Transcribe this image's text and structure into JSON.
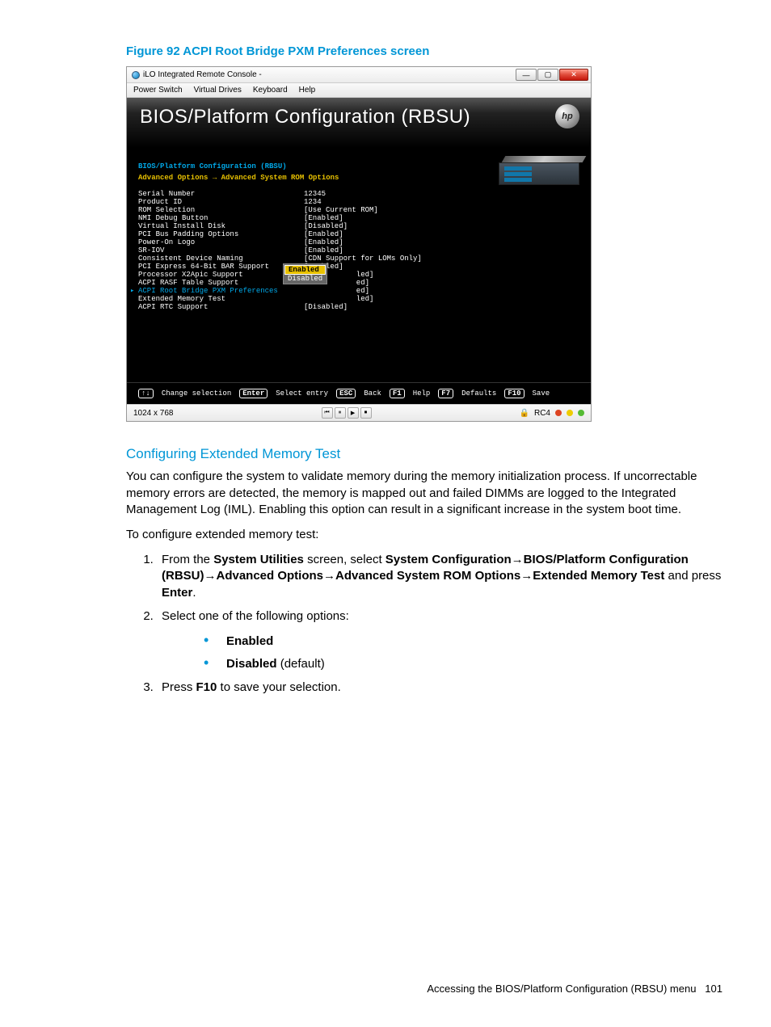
{
  "figure": {
    "caption": "Figure 92 ACPI Root Bridge PXM Preferences screen"
  },
  "window": {
    "title": "iLO Integrated Remote Console -",
    "buttons": {
      "min": "—",
      "max": "▢",
      "close": "✕"
    },
    "menubar": [
      "Power Switch",
      "Virtual Drives",
      "Keyboard",
      "Help"
    ]
  },
  "bios": {
    "banner_title": "BIOS/Platform Configuration (RBSU)",
    "header": "BIOS/Platform Configuration (RBSU)",
    "breadcrumb": "Advanced Options → Advanced System ROM Options",
    "rows": [
      {
        "label": "Serial Number",
        "value": "12345"
      },
      {
        "label": "Product ID",
        "value": "1234"
      },
      {
        "label": "ROM Selection",
        "value": "[Use Current ROM]"
      },
      {
        "label": "NMI Debug Button",
        "value": "[Enabled]"
      },
      {
        "label": "Virtual Install Disk",
        "value": "[Disabled]"
      },
      {
        "label": "PCI Bus Padding Options",
        "value": "[Enabled]"
      },
      {
        "label": "Power-On Logo",
        "value": "[Enabled]"
      },
      {
        "label": "SR-IOV",
        "value": "[Enabled]"
      },
      {
        "label": "Consistent Device Naming",
        "value": "[CDN Support for LOMs Only]"
      },
      {
        "label": "PCI Express 64-Bit BAR Support",
        "value": "[Enabled]"
      },
      {
        "label": "Processor X2Apic Support",
        "value": "            led]"
      },
      {
        "label": "ACPI RASF Table Support",
        "value": "            ed]"
      },
      {
        "label": "ACPI Root Bridge PXM Preferences",
        "value": "            ed]",
        "selected": true
      },
      {
        "label": "Extended Memory Test",
        "value": "            led]"
      },
      {
        "label": "ACPI RTC Support",
        "value": "[Disabled]"
      }
    ],
    "popup": {
      "items": [
        {
          "text": "Enabled",
          "selected": true
        },
        {
          "text": "Disabled",
          "selected": false
        }
      ]
    },
    "keybar": [
      {
        "key": "↑↓",
        "label": "Change selection"
      },
      {
        "key": "Enter",
        "label": "Select entry"
      },
      {
        "key": "ESC",
        "label": "Back"
      },
      {
        "key": "F1",
        "label": "Help"
      },
      {
        "key": "F7",
        "label": "Defaults"
      },
      {
        "key": "F10",
        "label": "Save"
      }
    ]
  },
  "statusbar": {
    "resolution": "1024 x 768",
    "rc_label": "RC4",
    "dots": [
      "#d42",
      "#ec0",
      "#5b3"
    ]
  },
  "section": {
    "heading": "Configuring Extended Memory Test",
    "para1": "You can configure the system to validate memory during the memory initialization process. If uncorrectable memory errors are detected, the memory is mapped out and failed DIMMs are logged to the Integrated Management Log (IML). Enabling this option can result in a significant increase in the system boot time.",
    "para2": "To configure extended memory test:",
    "step1_pre": "From the ",
    "step1_b1": "System Utilities",
    "step1_mid1": " screen, select ",
    "step1_b2": "System Configuration",
    "step1_arrow": "→",
    "step1_b3": "BIOS/Platform Configuration (RBSU)",
    "step1_b4": "Advanced Options",
    "step1_b5": "Advanced System ROM Options",
    "step1_b6": "Extended Memory Test",
    "step1_end1": " and press ",
    "step1_b7": "Enter",
    "step1_end2": ".",
    "step2": "Select one of the following options:",
    "opt1": "Enabled",
    "opt2_b": "Disabled",
    "opt2_rest": " (default)",
    "step3_pre": "Press ",
    "step3_b": "F10",
    "step3_post": " to save your selection."
  },
  "footer": {
    "text": "Accessing the BIOS/Platform Configuration (RBSU) menu",
    "page": "101"
  },
  "colors": {
    "accent": "#0096d6",
    "bios_cyan": "#00a8e8",
    "bios_yellow": "#e8c100"
  }
}
